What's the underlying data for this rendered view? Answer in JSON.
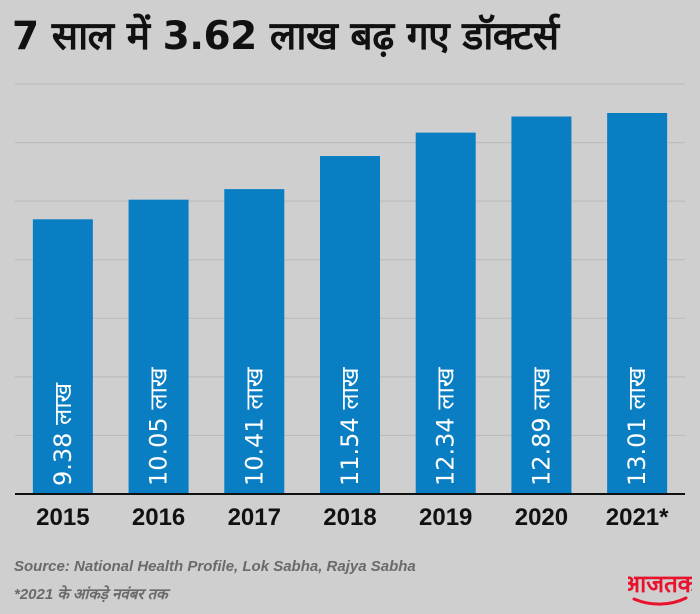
{
  "title": "7 साल में 3.62 लाख बढ़ गए डॉक्टर्स",
  "source": "Source: National Health Profile, Lok Sabha, Rajya Sabha",
  "note": "*2021 के आंकड़े नवंबर तक",
  "logo": {
    "text": "आजतक",
    "color": "#e8142d"
  },
  "colors": {
    "background": "#cfcfcf",
    "bar": "#0a7ec3",
    "grid": "#b9b9b9",
    "axis": "#111111",
    "bar_label": "#ffffff"
  },
  "chart_data": {
    "type": "bar",
    "categories": [
      "2015",
      "2016",
      "2017",
      "2018",
      "2019",
      "2020",
      "2021*"
    ],
    "values": [
      9.38,
      10.05,
      10.41,
      11.54,
      12.34,
      12.89,
      13.01
    ],
    "data_labels": [
      "9.38 लाख",
      "10.05 लाख",
      "10.41 लाख",
      "11.54 लाख",
      "12.34 लाख",
      "12.89 लाख",
      "13.01 लाख"
    ],
    "title": "7 साल में 3.62 लाख बढ़ गए डॉक्टर्स",
    "xlabel": "",
    "ylabel": "",
    "ylim": [
      0,
      14
    ],
    "grid": true,
    "legend": "none"
  }
}
